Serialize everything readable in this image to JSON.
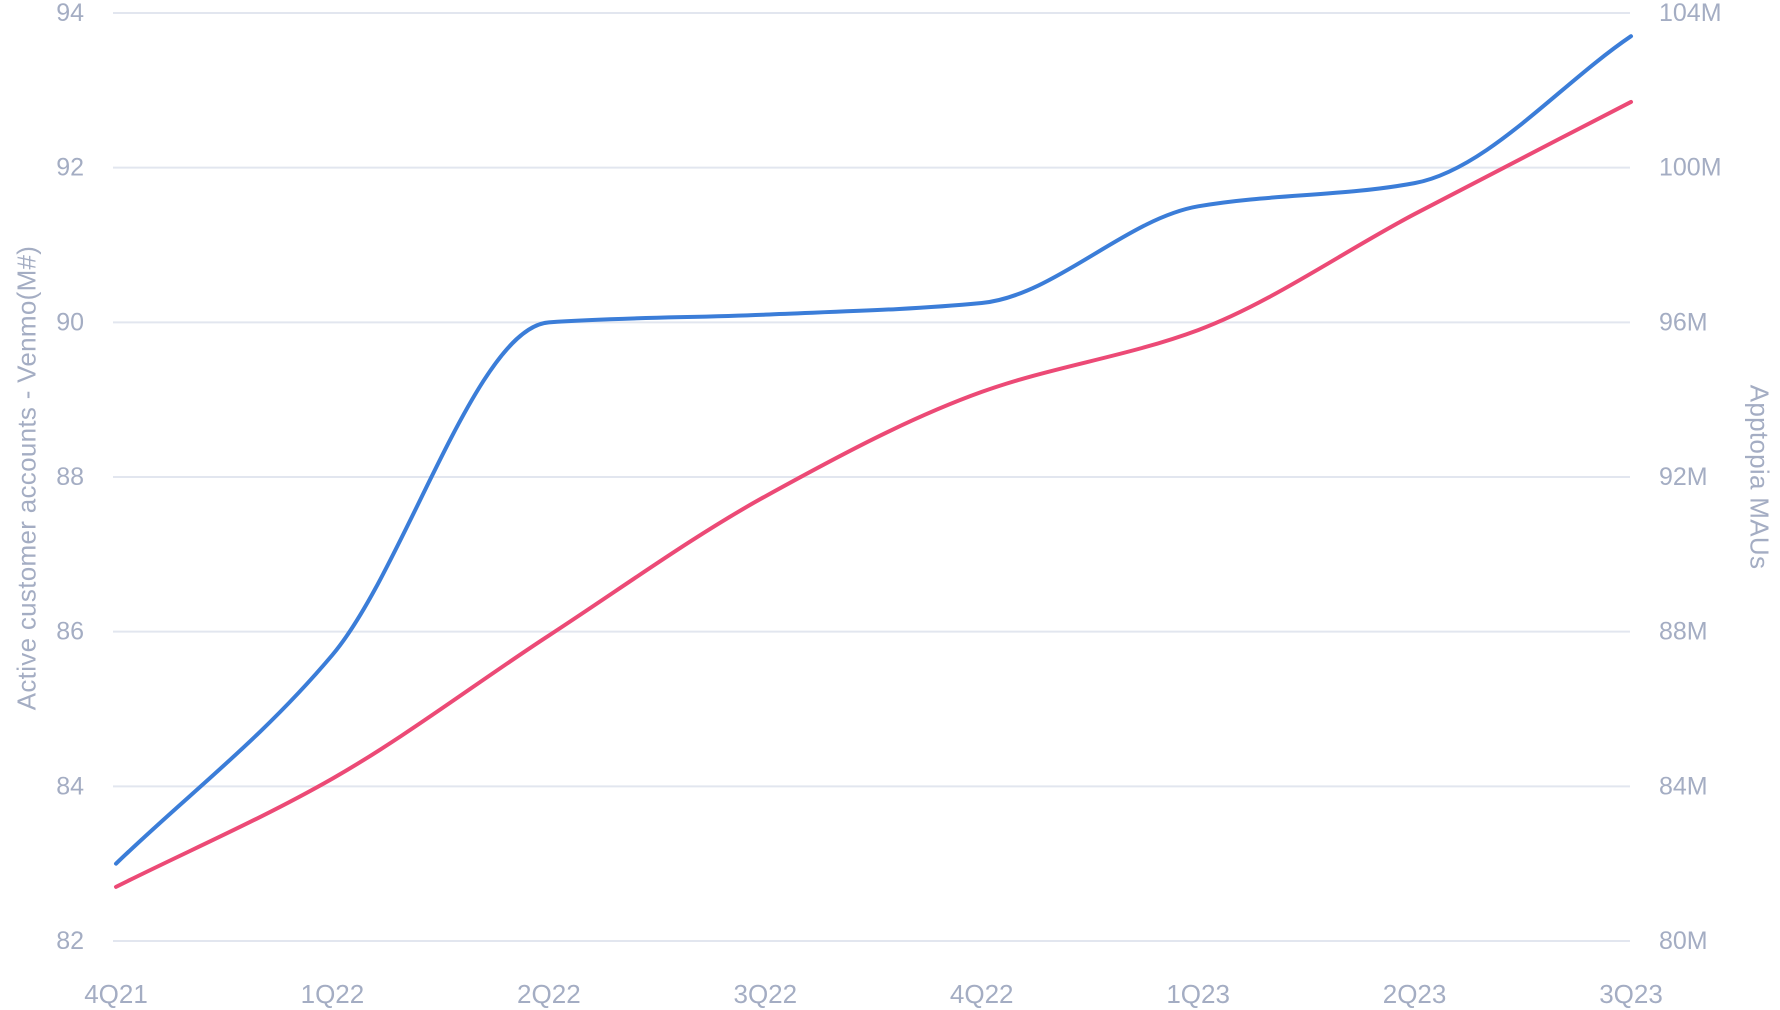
{
  "chart_data": {
    "type": "line",
    "x_categories": [
      "4Q21",
      "1Q22",
      "2Q22",
      "3Q22",
      "4Q22",
      "1Q23",
      "2Q23",
      "3Q23"
    ],
    "series": [
      {
        "name": "Active customer accounts - Venmo(M#)",
        "axis": "left",
        "color": "#3b7dd8",
        "values": [
          83.0,
          85.7,
          90.0,
          90.1,
          90.25,
          91.5,
          91.8,
          93.7
        ]
      },
      {
        "name": "Apptopia MAUs",
        "axis": "right",
        "color": "#ec4a76",
        "values": [
          81.4,
          84.2,
          87.9,
          91.5,
          94.2,
          95.8,
          98.8,
          101.7
        ]
      }
    ],
    "left_axis": {
      "label": "Active customer accounts - Venmo(M#)",
      "ticks": [
        82,
        84,
        86,
        88,
        90,
        92,
        94
      ],
      "range": [
        82,
        94
      ]
    },
    "right_axis": {
      "label": "Apptopia MAUs",
      "ticks": [
        "80M",
        "84M",
        "88M",
        "92M",
        "96M",
        "100M",
        "104M"
      ],
      "tick_values": [
        80,
        84,
        88,
        92,
        96,
        100,
        104
      ],
      "range": [
        80,
        104
      ]
    },
    "grid": true,
    "legend": "none",
    "title": ""
  },
  "styles": {
    "background": "#ffffff",
    "grid_color": "#e2e6ef",
    "tick_color": "#a4adc3",
    "venmo_line_color": "#3b7dd8",
    "maus_line_color": "#ec4a76"
  }
}
